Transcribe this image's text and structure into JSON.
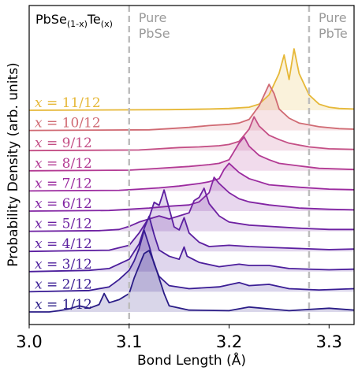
{
  "chart_data": {
    "type": "line",
    "title_parts": [
      "PbSe",
      "(1-x)",
      "Te",
      "(x)"
    ],
    "xlabel": "Bond Length (Å)",
    "ylabel": "Probability Density (arb. units)",
    "xlim": [
      3.0,
      3.325
    ],
    "xticks": [
      "3.0",
      "3.1",
      "3.2",
      "3.3"
    ],
    "reference_lines": [
      {
        "x": 3.1,
        "label_lines": [
          "Pure",
          "PbSe"
        ]
      },
      {
        "x": 3.28,
        "label_lines": [
          "Pure",
          "PbTe"
        ]
      }
    ],
    "series": [
      {
        "name": "x = 1/12",
        "color": "#2a1c86",
        "points": [
          [
            3.0,
            0
          ],
          [
            3.02,
            0
          ],
          [
            3.03,
            0.02
          ],
          [
            3.04,
            0.05
          ],
          [
            3.05,
            0.1
          ],
          [
            3.06,
            0.06
          ],
          [
            3.07,
            0.12
          ],
          [
            3.075,
            0.3
          ],
          [
            3.08,
            0.15
          ],
          [
            3.09,
            0.2
          ],
          [
            3.1,
            0.3
          ],
          [
            3.105,
            0.55
          ],
          [
            3.11,
            0.75
          ],
          [
            3.115,
            0.95
          ],
          [
            3.12,
            1.0
          ],
          [
            3.125,
            0.8
          ],
          [
            3.13,
            0.55
          ],
          [
            3.135,
            0.3
          ],
          [
            3.14,
            0.1
          ],
          [
            3.16,
            0.03
          ],
          [
            3.2,
            0.02
          ],
          [
            3.22,
            0.08
          ],
          [
            3.24,
            0.05
          ],
          [
            3.26,
            0.02
          ],
          [
            3.3,
            0.06
          ],
          [
            3.325,
            0.03
          ]
        ]
      },
      {
        "name": "x = 2/12",
        "color": "#3a1d94",
        "points": [
          [
            3.0,
            0
          ],
          [
            3.06,
            0.02
          ],
          [
            3.08,
            0.08
          ],
          [
            3.09,
            0.2
          ],
          [
            3.1,
            0.35
          ],
          [
            3.105,
            0.5
          ],
          [
            3.11,
            0.7
          ],
          [
            3.115,
            1.0
          ],
          [
            3.12,
            0.75
          ],
          [
            3.125,
            0.45
          ],
          [
            3.13,
            0.25
          ],
          [
            3.14,
            0.1
          ],
          [
            3.16,
            0.05
          ],
          [
            3.19,
            0.08
          ],
          [
            3.21,
            0.15
          ],
          [
            3.22,
            0.1
          ],
          [
            3.24,
            0.12
          ],
          [
            3.26,
            0.05
          ],
          [
            3.29,
            0.03
          ],
          [
            3.325,
            0.05
          ]
        ]
      },
      {
        "name": "x = 3/12",
        "color": "#4c1e9c",
        "points": [
          [
            3.0,
            0
          ],
          [
            3.06,
            0.02
          ],
          [
            3.08,
            0.05
          ],
          [
            3.1,
            0.2
          ],
          [
            3.11,
            0.45
          ],
          [
            3.115,
            0.7
          ],
          [
            3.12,
            0.9
          ],
          [
            3.125,
            0.6
          ],
          [
            3.13,
            0.35
          ],
          [
            3.14,
            0.25
          ],
          [
            3.15,
            0.2
          ],
          [
            3.155,
            0.4
          ],
          [
            3.158,
            0.25
          ],
          [
            3.17,
            0.15
          ],
          [
            3.19,
            0.08
          ],
          [
            3.21,
            0.12
          ],
          [
            3.22,
            0.1
          ],
          [
            3.24,
            0.1
          ],
          [
            3.26,
            0.05
          ],
          [
            3.3,
            0.03
          ],
          [
            3.325,
            0.04
          ]
        ]
      },
      {
        "name": "x = 4/12",
        "color": "#5c1fa0",
        "points": [
          [
            3.0,
            0
          ],
          [
            3.08,
            0.02
          ],
          [
            3.1,
            0.1
          ],
          [
            3.11,
            0.3
          ],
          [
            3.12,
            0.55
          ],
          [
            3.125,
            0.8
          ],
          [
            3.13,
            0.75
          ],
          [
            3.135,
            1.0
          ],
          [
            3.14,
            0.7
          ],
          [
            3.145,
            0.4
          ],
          [
            3.15,
            0.35
          ],
          [
            3.155,
            0.55
          ],
          [
            3.16,
            0.3
          ],
          [
            3.17,
            0.15
          ],
          [
            3.18,
            0.08
          ],
          [
            3.2,
            0.1
          ],
          [
            3.22,
            0.08
          ],
          [
            3.25,
            0.06
          ],
          [
            3.3,
            0.03
          ],
          [
            3.325,
            0.04
          ]
        ]
      },
      {
        "name": "x = 5/12",
        "color": "#6e21a2",
        "points": [
          [
            3.0,
            0
          ],
          [
            3.07,
            0.01
          ],
          [
            3.09,
            0.03
          ],
          [
            3.1,
            0.08
          ],
          [
            3.11,
            0.15
          ],
          [
            3.12,
            0.2
          ],
          [
            3.13,
            0.25
          ],
          [
            3.14,
            0.2
          ],
          [
            3.15,
            0.25
          ],
          [
            3.16,
            0.3
          ],
          [
            3.165,
            0.5
          ],
          [
            3.17,
            0.55
          ],
          [
            3.175,
            0.7
          ],
          [
            3.18,
            0.45
          ],
          [
            3.19,
            0.25
          ],
          [
            3.2,
            0.15
          ],
          [
            3.22,
            0.1
          ],
          [
            3.24,
            0.08
          ],
          [
            3.27,
            0.05
          ],
          [
            3.3,
            0.03
          ],
          [
            3.325,
            0.03
          ]
        ]
      },
      {
        "name": "x = 6/12",
        "color": "#8224a3",
        "points": [
          [
            3.0,
            0
          ],
          [
            3.08,
            0.01
          ],
          [
            3.1,
            0.03
          ],
          [
            3.12,
            0.05
          ],
          [
            3.14,
            0.08
          ],
          [
            3.16,
            0.1
          ],
          [
            3.17,
            0.15
          ],
          [
            3.18,
            0.3
          ],
          [
            3.185,
            0.55
          ],
          [
            3.19,
            0.45
          ],
          [
            3.2,
            0.3
          ],
          [
            3.21,
            0.2
          ],
          [
            3.22,
            0.15
          ],
          [
            3.24,
            0.1
          ],
          [
            3.27,
            0.05
          ],
          [
            3.3,
            0.03
          ],
          [
            3.325,
            0.02
          ]
        ]
      },
      {
        "name": "x = 7/12",
        "color": "#9b2a9f",
        "points": [
          [
            3.0,
            0
          ],
          [
            3.09,
            0.01
          ],
          [
            3.11,
            0.03
          ],
          [
            3.13,
            0.05
          ],
          [
            3.15,
            0.08
          ],
          [
            3.17,
            0.12
          ],
          [
            3.18,
            0.15
          ],
          [
            3.19,
            0.2
          ],
          [
            3.195,
            0.35
          ],
          [
            3.2,
            0.45
          ],
          [
            3.21,
            0.3
          ],
          [
            3.22,
            0.2
          ],
          [
            3.23,
            0.15
          ],
          [
            3.24,
            0.1
          ],
          [
            3.27,
            0.06
          ],
          [
            3.3,
            0.03
          ],
          [
            3.325,
            0.02
          ]
        ]
      },
      {
        "name": "x = 8/12",
        "color": "#b33a93",
        "points": [
          [
            3.0,
            0
          ],
          [
            3.1,
            0.01
          ],
          [
            3.12,
            0.03
          ],
          [
            3.14,
            0.05
          ],
          [
            3.16,
            0.07
          ],
          [
            3.18,
            0.1
          ],
          [
            3.19,
            0.12
          ],
          [
            3.2,
            0.18
          ],
          [
            3.21,
            0.45
          ],
          [
            3.215,
            0.55
          ],
          [
            3.22,
            0.4
          ],
          [
            3.23,
            0.25
          ],
          [
            3.24,
            0.18
          ],
          [
            3.25,
            0.12
          ],
          [
            3.27,
            0.08
          ],
          [
            3.29,
            0.04
          ],
          [
            3.325,
            0.02
          ]
        ]
      },
      {
        "name": "x = 9/12",
        "color": "#c44f85",
        "points": [
          [
            3.0,
            0
          ],
          [
            3.11,
            0.01
          ],
          [
            3.13,
            0.03
          ],
          [
            3.15,
            0.05
          ],
          [
            3.17,
            0.06
          ],
          [
            3.19,
            0.08
          ],
          [
            3.2,
            0.1
          ],
          [
            3.21,
            0.15
          ],
          [
            3.22,
            0.35
          ],
          [
            3.225,
            0.55
          ],
          [
            3.23,
            0.4
          ],
          [
            3.24,
            0.25
          ],
          [
            3.25,
            0.18
          ],
          [
            3.26,
            0.12
          ],
          [
            3.28,
            0.06
          ],
          [
            3.3,
            0.03
          ],
          [
            3.325,
            0.02
          ]
        ]
      },
      {
        "name": "x = 10/12",
        "color": "#d06a73",
        "points": [
          [
            3.0,
            0
          ],
          [
            3.12,
            0.01
          ],
          [
            3.14,
            0.03
          ],
          [
            3.16,
            0.05
          ],
          [
            3.18,
            0.08
          ],
          [
            3.2,
            0.1
          ],
          [
            3.21,
            0.12
          ],
          [
            3.22,
            0.18
          ],
          [
            3.23,
            0.4
          ],
          [
            3.24,
            0.75
          ],
          [
            3.245,
            0.6
          ],
          [
            3.25,
            0.35
          ],
          [
            3.26,
            0.2
          ],
          [
            3.27,
            0.12
          ],
          [
            3.29,
            0.06
          ],
          [
            3.31,
            0.03
          ],
          [
            3.325,
            0.02
          ]
        ]
      },
      {
        "name": "x = 11/12",
        "color": "#e6b838",
        "points": [
          [
            3.0,
            0
          ],
          [
            3.14,
            0.01
          ],
          [
            3.18,
            0.02
          ],
          [
            3.2,
            0.03
          ],
          [
            3.22,
            0.05
          ],
          [
            3.23,
            0.1
          ],
          [
            3.24,
            0.25
          ],
          [
            3.25,
            0.6
          ],
          [
            3.255,
            0.9
          ],
          [
            3.26,
            0.5
          ],
          [
            3.265,
            1.0
          ],
          [
            3.27,
            0.6
          ],
          [
            3.28,
            0.25
          ],
          [
            3.29,
            0.1
          ],
          [
            3.3,
            0.05
          ],
          [
            3.31,
            0.03
          ],
          [
            3.325,
            0.02
          ]
        ]
      }
    ]
  }
}
